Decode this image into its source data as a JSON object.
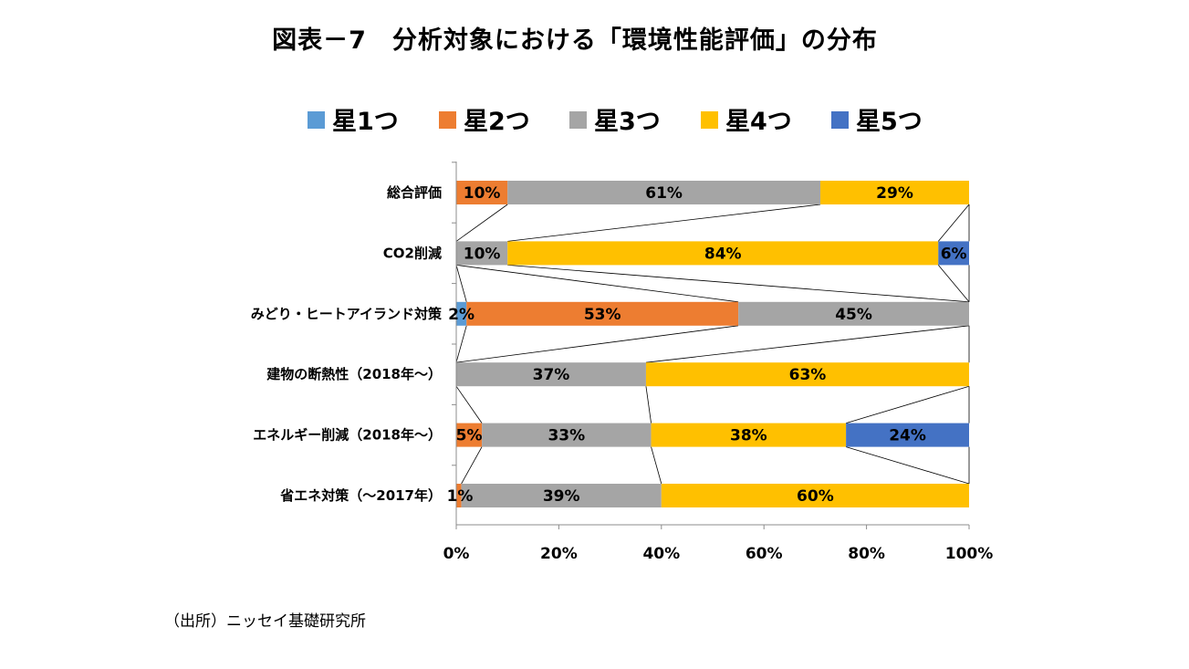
{
  "title": "図表－7　分析対象における「環境性能評価」の分布",
  "source": "（出所）ニッセイ基礎研究所",
  "chart_data": {
    "type": "bar",
    "orientation": "horizontal",
    "stacked": "percent",
    "categories": [
      "総合評価",
      "CO2削減",
      "みどり・ヒートアイランド対策",
      "建物の断熱性（2018年～）",
      "エネルギー削減（2018年～）",
      "省エネ対策（～2017年）"
    ],
    "series": [
      {
        "name": "星1つ",
        "color": "#5B9BD5",
        "values": [
          0,
          0,
          2,
          0,
          0,
          0
        ]
      },
      {
        "name": "星2つ",
        "color": "#ED7D31",
        "values": [
          10,
          0,
          53,
          0,
          5,
          1
        ]
      },
      {
        "name": "星3つ",
        "color": "#A5A5A5",
        "values": [
          61,
          10,
          45,
          37,
          33,
          39
        ]
      },
      {
        "name": "星4つ",
        "color": "#FFC000",
        "values": [
          29,
          84,
          0,
          63,
          38,
          60
        ]
      },
      {
        "name": "星5つ",
        "color": "#4472C4",
        "values": [
          0,
          6,
          0,
          0,
          24,
          0
        ]
      }
    ],
    "data_labels": [
      [
        "",
        "10%",
        "61%",
        "29%",
        ""
      ],
      [
        "",
        "",
        "10%",
        "84%",
        "6%"
      ],
      [
        "2%",
        "53%",
        "45%",
        "",
        ""
      ],
      [
        "",
        "",
        "37%",
        "63%",
        ""
      ],
      [
        "",
        "5%",
        "33%",
        "38%",
        "24%"
      ],
      [
        "",
        "1%",
        "39%",
        "60%",
        ""
      ]
    ],
    "xlim": [
      0,
      100
    ],
    "xticks": [
      "0%",
      "20%",
      "40%",
      "60%",
      "80%",
      "100%"
    ],
    "series_lines": true,
    "grid": false,
    "legend_position": "top"
  }
}
